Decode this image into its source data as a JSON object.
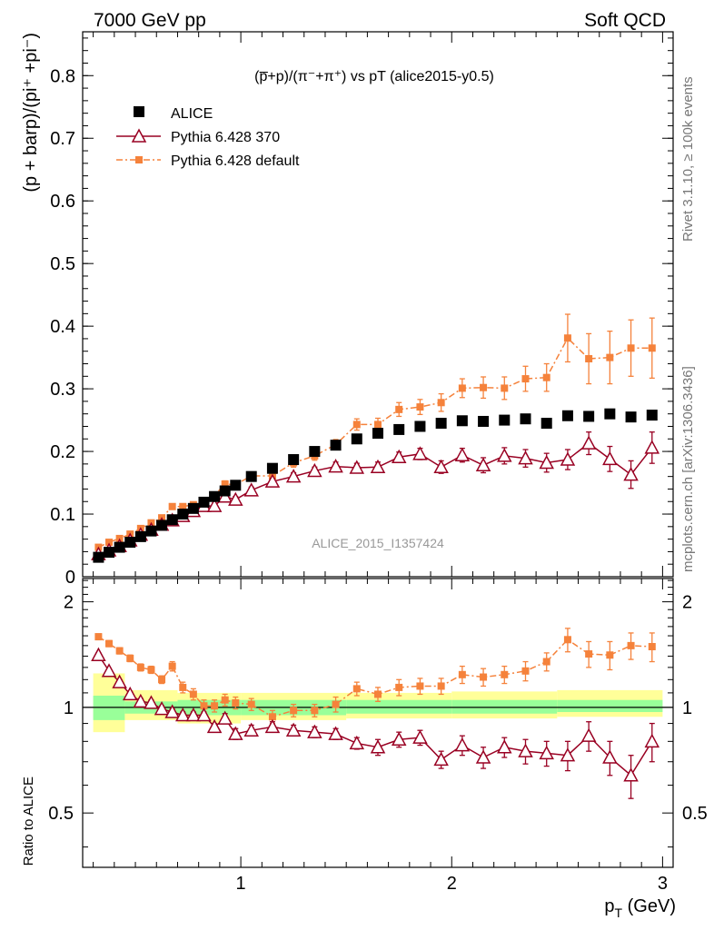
{
  "header": {
    "left": "7000 GeV pp",
    "right": "Soft QCD"
  },
  "side": {
    "rivet": "Rivet 3.1.10, ≥ 100k events",
    "mcplots": "mcplots.cern.ch [arXiv:1306.3436]"
  },
  "watermark": "ALICE_2015_I1357424",
  "chart_data": {
    "type": "scatter",
    "title": "(p̅+p)/(π⁻+π⁺) vs pT (alice2015-y0.5)",
    "xlabel": "p_T (GeV)",
    "ylabel": "(p + barp)/(pi⁺ +pi⁻)",
    "ratio_ylabel": "Ratio to ALICE",
    "xlim": [
      0.25,
      3.05
    ],
    "ylim": [
      0,
      0.87
    ],
    "ratio_ylim": [
      0.35,
      2.33
    ],
    "x_ticks": [
      "1",
      "2",
      "3"
    ],
    "y_ticks": [
      "0",
      "0.1",
      "0.2",
      "0.3",
      "0.4",
      "0.5",
      "0.6",
      "0.7",
      "0.8"
    ],
    "ratio_ticks": [
      "0.5",
      "1",
      "2"
    ],
    "legend_position": "top-left",
    "series": [
      {
        "name": "ALICE",
        "color": "#000000",
        "marker": "square",
        "x": [
          0.325,
          0.375,
          0.425,
          0.475,
          0.525,
          0.575,
          0.625,
          0.675,
          0.725,
          0.775,
          0.825,
          0.875,
          0.925,
          0.975,
          1.05,
          1.15,
          1.25,
          1.35,
          1.45,
          1.55,
          1.65,
          1.75,
          1.85,
          1.95,
          2.05,
          2.15,
          2.25,
          2.35,
          2.45,
          2.55,
          2.65,
          2.75,
          2.85,
          2.95
        ],
        "y": [
          0.031,
          0.039,
          0.047,
          0.055,
          0.064,
          0.073,
          0.082,
          0.091,
          0.1,
          0.109,
          0.119,
          0.128,
          0.137,
          0.146,
          0.16,
          0.173,
          0.187,
          0.2,
          0.21,
          0.22,
          0.229,
          0.235,
          0.24,
          0.245,
          0.249,
          0.248,
          0.25,
          0.252,
          0.245,
          0.257,
          0.256,
          0.26,
          0.255,
          0.258
        ],
        "ratio_band": {
          "edges": [
            0.3,
            0.45,
            0.7,
            1.0,
            1.5,
            2.0,
            2.5,
            3.0
          ],
          "stat_sys_lo": [
            0.92,
            0.96,
            0.95,
            0.95,
            0.96,
            0.96,
            0.97,
            0.92
          ],
          "stat_sys_hi": [
            1.08,
            1.04,
            1.05,
            1.05,
            1.05,
            1.05,
            1.05,
            1.08
          ],
          "total_lo": [
            0.85,
            0.92,
            0.9,
            0.92,
            0.93,
            0.93,
            0.94,
            0.89
          ],
          "total_hi": [
            1.25,
            1.12,
            1.1,
            1.1,
            1.1,
            1.11,
            1.12,
            1.2
          ]
        }
      },
      {
        "name": "Pythia 6.428 370",
        "color": "#990022",
        "marker": "triangle-open",
        "x": [
          0.325,
          0.375,
          0.425,
          0.475,
          0.525,
          0.575,
          0.625,
          0.675,
          0.725,
          0.775,
          0.825,
          0.875,
          0.925,
          0.975,
          1.05,
          1.15,
          1.25,
          1.35,
          1.45,
          1.55,
          1.65,
          1.75,
          1.85,
          1.95,
          2.05,
          2.15,
          2.25,
          2.35,
          2.45,
          2.55,
          2.65,
          2.75,
          2.85,
          2.95
        ],
        "y": [
          0.036,
          0.042,
          0.049,
          0.058,
          0.067,
          0.075,
          0.083,
          0.09,
          0.097,
          0.105,
          0.113,
          0.113,
          0.128,
          0.123,
          0.138,
          0.152,
          0.16,
          0.169,
          0.176,
          0.174,
          0.175,
          0.191,
          0.196,
          0.175,
          0.194,
          0.178,
          0.193,
          0.189,
          0.182,
          0.187,
          0.213,
          0.188,
          0.163,
          0.206
        ],
        "err": [
          0.002,
          0.002,
          0.002,
          0.002,
          0.002,
          0.003,
          0.003,
          0.003,
          0.003,
          0.004,
          0.004,
          0.004,
          0.005,
          0.005,
          0.005,
          0.005,
          0.006,
          0.006,
          0.007,
          0.007,
          0.008,
          0.008,
          0.009,
          0.01,
          0.011,
          0.012,
          0.013,
          0.014,
          0.015,
          0.016,
          0.018,
          0.02,
          0.022,
          0.025
        ],
        "ratio": [
          1.41,
          1.27,
          1.18,
          1.09,
          1.04,
          1.03,
          0.99,
          0.97,
          0.95,
          0.95,
          0.95,
          0.88,
          0.93,
          0.84,
          0.86,
          0.88,
          0.86,
          0.85,
          0.84,
          0.79,
          0.77,
          0.81,
          0.82,
          0.71,
          0.78,
          0.72,
          0.77,
          0.75,
          0.74,
          0.73,
          0.83,
          0.72,
          0.64,
          0.8
        ],
        "ratio_err": [
          0.02,
          0.02,
          0.02,
          0.02,
          0.02,
          0.02,
          0.02,
          0.02,
          0.02,
          0.02,
          0.02,
          0.02,
          0.03,
          0.03,
          0.03,
          0.03,
          0.03,
          0.03,
          0.03,
          0.03,
          0.04,
          0.04,
          0.04,
          0.04,
          0.05,
          0.05,
          0.05,
          0.06,
          0.06,
          0.07,
          0.08,
          0.08,
          0.09,
          0.1
        ]
      },
      {
        "name": "Pythia 6.428 default",
        "color": "#f5823b",
        "marker": "square-small",
        "line": "dashdot",
        "x": [
          0.325,
          0.375,
          0.425,
          0.475,
          0.525,
          0.575,
          0.625,
          0.675,
          0.725,
          0.775,
          0.825,
          0.875,
          0.925,
          0.975,
          1.05,
          1.15,
          1.25,
          1.35,
          1.45,
          1.55,
          1.65,
          1.75,
          1.85,
          1.95,
          2.05,
          2.15,
          2.25,
          2.35,
          2.45,
          2.55,
          2.65,
          2.75,
          2.85,
          2.95
        ],
        "y": [
          0.047,
          0.055,
          0.061,
          0.068,
          0.077,
          0.086,
          0.094,
          0.112,
          0.112,
          0.115,
          0.117,
          0.13,
          0.148,
          0.147,
          0.161,
          0.161,
          0.182,
          0.193,
          0.211,
          0.243,
          0.243,
          0.267,
          0.271,
          0.278,
          0.301,
          0.302,
          0.301,
          0.316,
          0.318,
          0.381,
          0.348,
          0.35,
          0.365,
          0.365
        ],
        "err": [
          0.002,
          0.002,
          0.002,
          0.002,
          0.003,
          0.003,
          0.003,
          0.004,
          0.004,
          0.004,
          0.004,
          0.004,
          0.005,
          0.005,
          0.006,
          0.006,
          0.007,
          0.007,
          0.008,
          0.009,
          0.01,
          0.011,
          0.012,
          0.014,
          0.015,
          0.017,
          0.018,
          0.02,
          0.022,
          0.038,
          0.04,
          0.042,
          0.045,
          0.048
        ],
        "ratio": [
          1.59,
          1.52,
          1.45,
          1.38,
          1.3,
          1.28,
          1.2,
          1.31,
          1.14,
          1.09,
          1.01,
          1.01,
          1.05,
          1.03,
          1.02,
          0.94,
          0.98,
          0.98,
          1.02,
          1.13,
          1.09,
          1.14,
          1.15,
          1.15,
          1.24,
          1.22,
          1.24,
          1.27,
          1.35,
          1.56,
          1.42,
          1.41,
          1.5,
          1.49
        ],
        "ratio_err": [
          0.03,
          0.03,
          0.03,
          0.03,
          0.03,
          0.03,
          0.03,
          0.04,
          0.04,
          0.04,
          0.04,
          0.04,
          0.04,
          0.04,
          0.04,
          0.04,
          0.04,
          0.04,
          0.05,
          0.05,
          0.05,
          0.06,
          0.06,
          0.06,
          0.07,
          0.07,
          0.07,
          0.08,
          0.08,
          0.12,
          0.12,
          0.13,
          0.13,
          0.14
        ]
      }
    ]
  }
}
